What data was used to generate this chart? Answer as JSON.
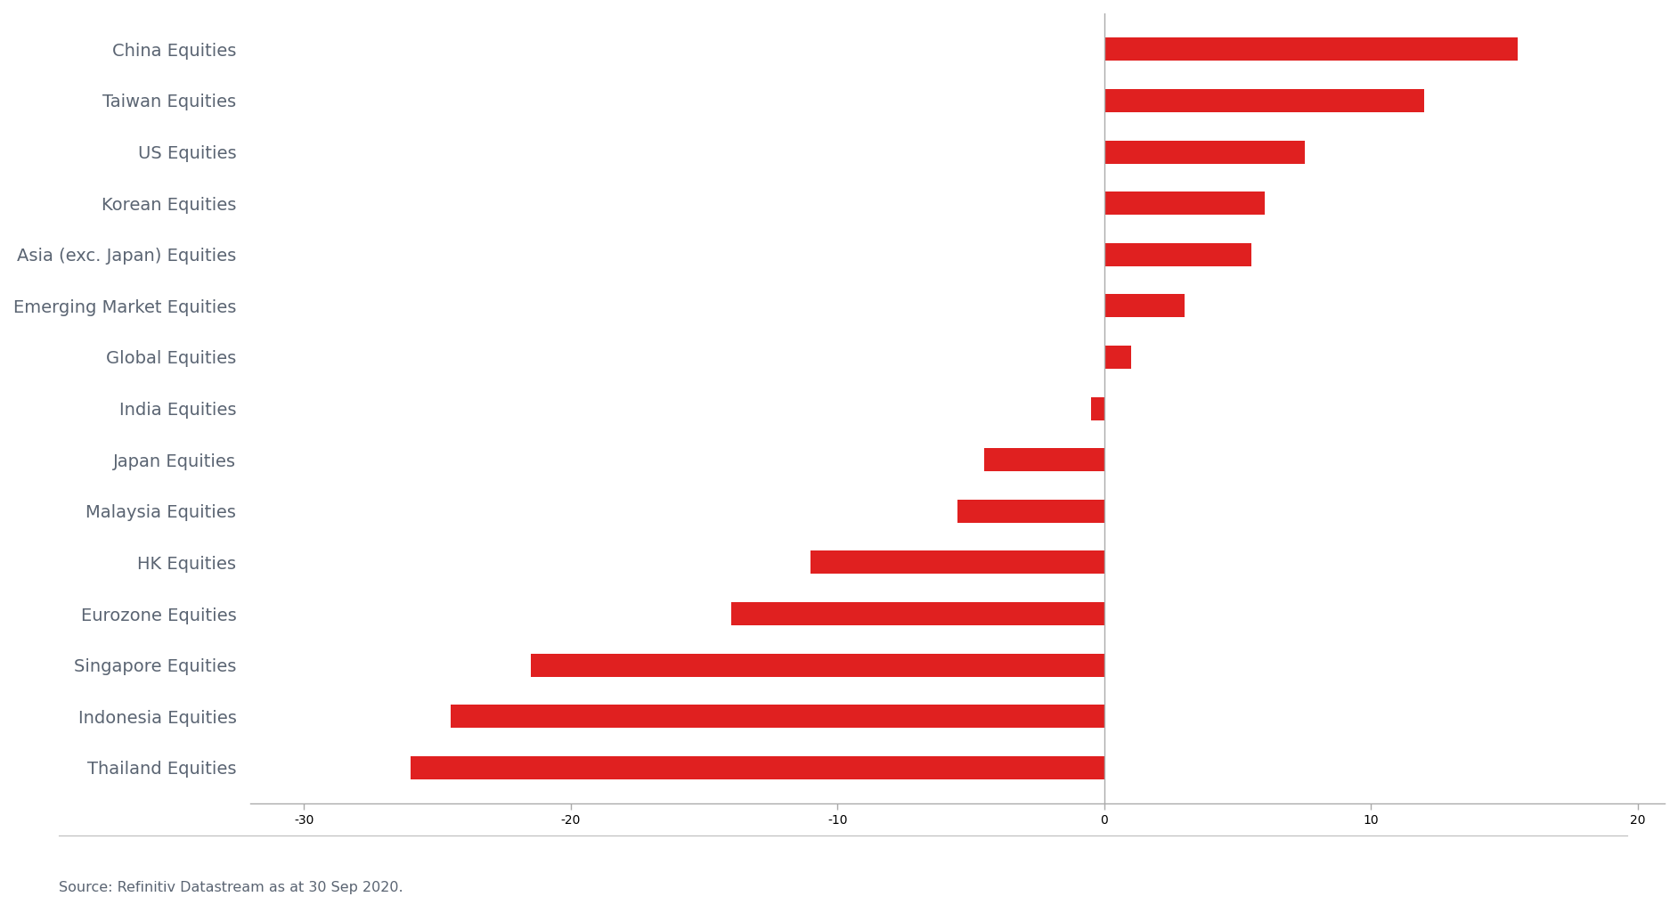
{
  "categories": [
    "Thailand Equities",
    "Indonesia Equities",
    "Singapore Equities",
    "Eurozone Equities",
    "HK Equities",
    "Malaysia Equities",
    "Japan Equities",
    "India Equities",
    "Global Equities",
    "Emerging Market Equities",
    "Asia (exc. Japan) Equities",
    "Korean Equities",
    "US Equities",
    "Taiwan Equities",
    "China Equities"
  ],
  "values": [
    -26.0,
    -24.5,
    -21.5,
    -14.0,
    -11.0,
    -5.5,
    -4.5,
    -0.5,
    1.0,
    3.0,
    5.5,
    6.0,
    7.5,
    12.0,
    15.5
  ],
  "bar_color": "#E02020",
  "background_color": "#ffffff",
  "label_color": "#5a6472",
  "source_text": "Source: Refinitiv Datastream as at 30 Sep 2020.",
  "source_fontsize": 11.5,
  "label_fontsize": 14,
  "tick_fontsize": 13,
  "xlim": [
    -32,
    21
  ],
  "xticks": [
    -30,
    -20,
    -10,
    0,
    10,
    20
  ],
  "xtick_labels": [
    "-30",
    "-20",
    "-10",
    "0",
    "10",
    "20"
  ],
  "bar_height": 0.45,
  "spine_color": "#aaaaaa",
  "figsize": [
    18.84,
    10.25
  ],
  "dpi": 100
}
